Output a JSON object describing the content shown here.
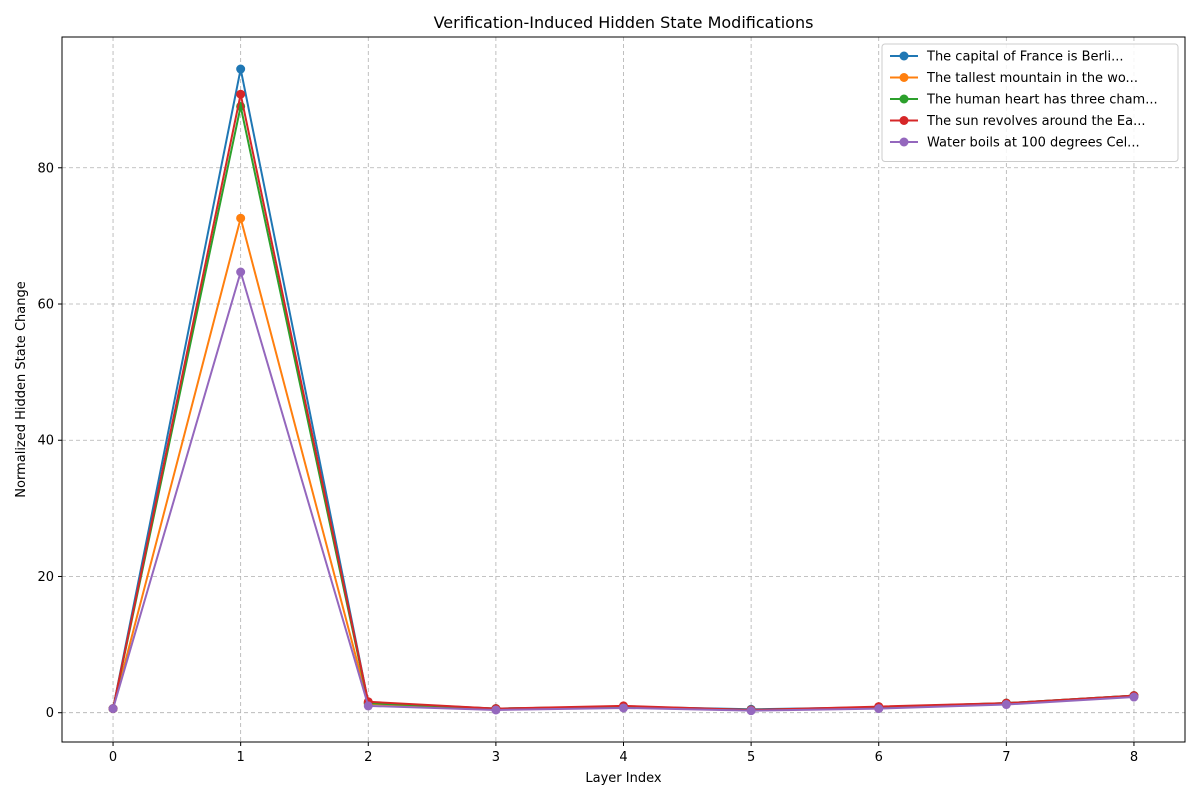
{
  "chart_data": {
    "type": "line",
    "title": "Verification-Induced Hidden State Modifications",
    "xlabel": "Layer Index",
    "ylabel": "Normalized Hidden State Change",
    "x": [
      0,
      1,
      2,
      3,
      4,
      5,
      6,
      7,
      8
    ],
    "xlim": [
      -0.4,
      8.4
    ],
    "ylim": [
      -4.3,
      99.2
    ],
    "xticks": [
      "0",
      "1",
      "2",
      "3",
      "4",
      "5",
      "6",
      "7",
      "8"
    ],
    "yticks": [
      0,
      20,
      40,
      60,
      80
    ],
    "grid": true,
    "legend_position": "top-right",
    "series": [
      {
        "name": "The capital of France is Berli...",
        "color": "#1f77b4",
        "values": [
          0.6,
          94.5,
          1.5,
          0.6,
          0.9,
          0.5,
          0.8,
          1.4,
          2.5
        ]
      },
      {
        "name": "The tallest mountain in the wo...",
        "color": "#ff7f0e",
        "values": [
          0.6,
          72.6,
          1.3,
          0.5,
          0.8,
          0.4,
          0.7,
          1.3,
          2.4
        ]
      },
      {
        "name": "The human heart has three cham...",
        "color": "#2ca02c",
        "values": [
          0.6,
          89.0,
          1.4,
          0.6,
          0.9,
          0.4,
          0.8,
          1.4,
          2.5
        ]
      },
      {
        "name": "The sun revolves around the Ea...",
        "color": "#d62728",
        "values": [
          0.6,
          90.8,
          1.6,
          0.6,
          1.0,
          0.4,
          0.9,
          1.4,
          2.5
        ]
      },
      {
        "name": "Water boils at 100 degrees Cel...",
        "color": "#9467bd",
        "values": [
          0.6,
          64.7,
          1.0,
          0.4,
          0.7,
          0.3,
          0.6,
          1.2,
          2.3
        ]
      }
    ]
  }
}
